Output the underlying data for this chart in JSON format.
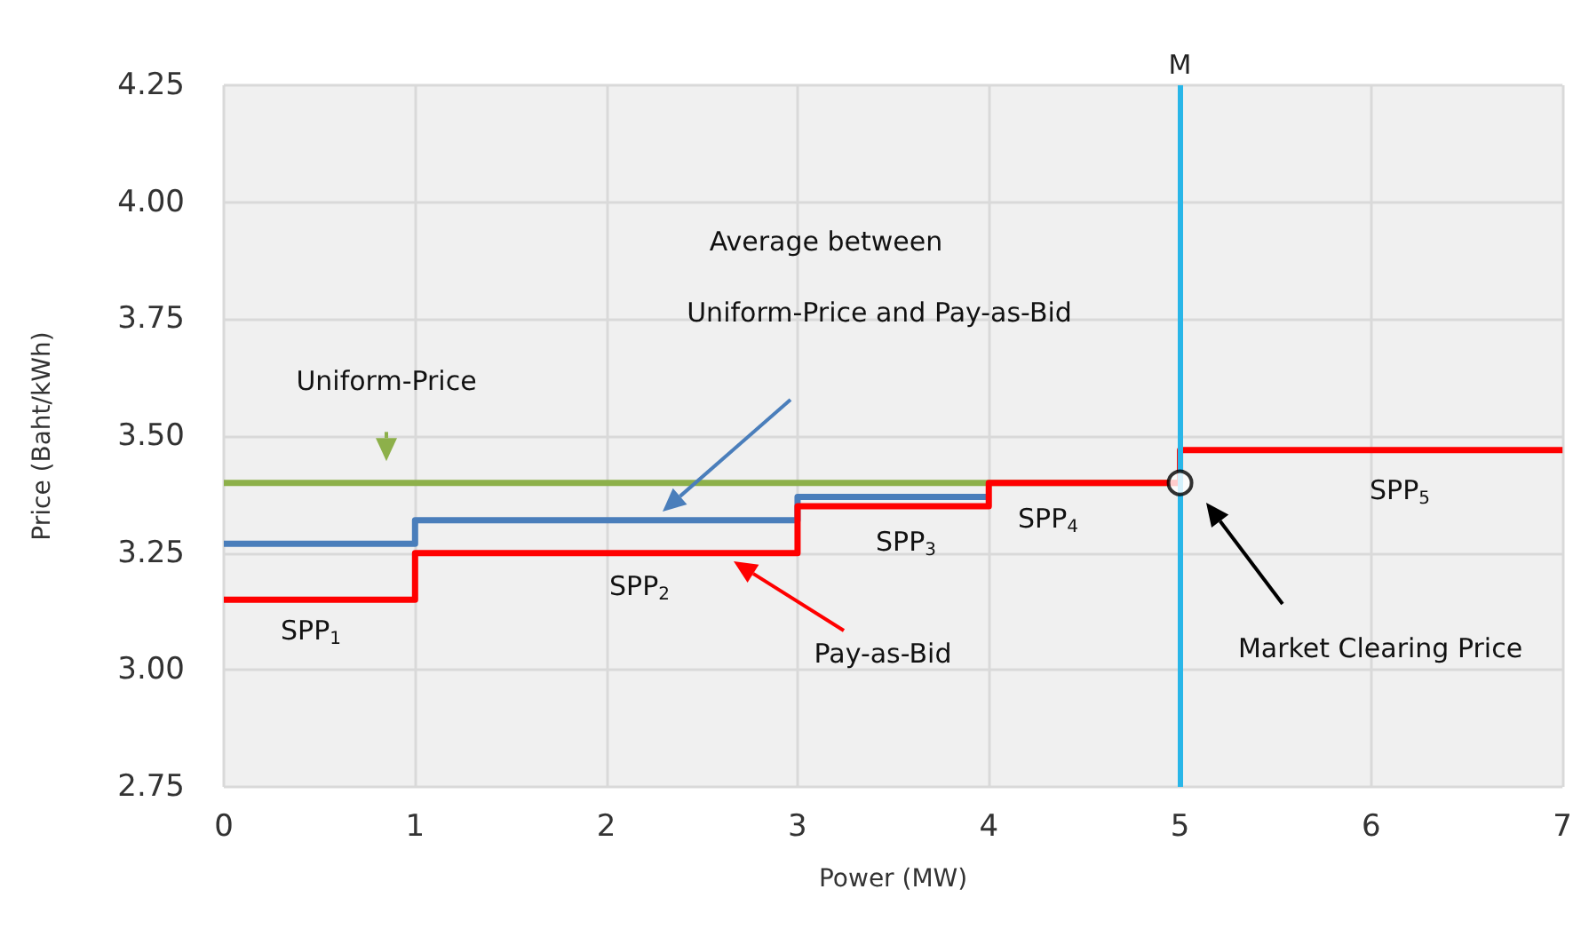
{
  "chart_data": {
    "type": "step",
    "xlabel": "Power (MW)",
    "ylabel": "Price (Baht/kWh)",
    "xlim": [
      0,
      7
    ],
    "xticks": [
      0,
      1,
      2,
      3,
      4,
      5,
      6,
      7
    ],
    "ylim": [
      2.75,
      4.25
    ],
    "yticks": [
      2.75,
      {
        "value": 3,
        "label": "3.00"
      },
      3.25,
      {
        "value": 3.5,
        "label": "3.50"
      },
      3.75,
      {
        "value": 4,
        "label": "4.00"
      },
      4.25
    ],
    "grid": true,
    "line_style": "solid",
    "marker": "none",
    "series": [
      {
        "type": "line",
        "color": "#8db04a",
        "x": [
          0,
          5
        ],
        "values": [
          3.4,
          3.4
        ]
      },
      {
        "color": "#4a7ebb",
        "x": [
          0,
          1,
          3,
          4
        ],
        "values": [
          3.27,
          3.32,
          3.37,
          3.37
        ]
      },
      {
        "color": "#ff0000",
        "x": [
          0,
          1,
          3,
          4,
          5,
          7
        ],
        "values": [
          3.15,
          3.25,
          3.35,
          3.4,
          3.47,
          3.47
        ]
      },
      {
        "type": "scatter",
        "color": "#000000",
        "marker": "circle",
        "x": [
          5
        ],
        "values": [
          3.4
        ]
      }
    ],
    "ref_lines": [
      {
        "axis": "x",
        "value": 5,
        "label": "M",
        "color": "#29b6e8"
      }
    ],
    "annotations": [
      {
        "text": "Uniform-Price",
        "x": 0.85,
        "y": 3.42
      },
      "Average between",
      "Uniform-Price and Pay-as-Bid",
      "Pay-as-Bid",
      "Market Clearing Price",
      "SPP$_{1}$",
      "SPP$_{2}$",
      "SPP$_{3}$",
      "SPP$_{4}$",
      "SPP$_{5}$"
    ]
  }
}
